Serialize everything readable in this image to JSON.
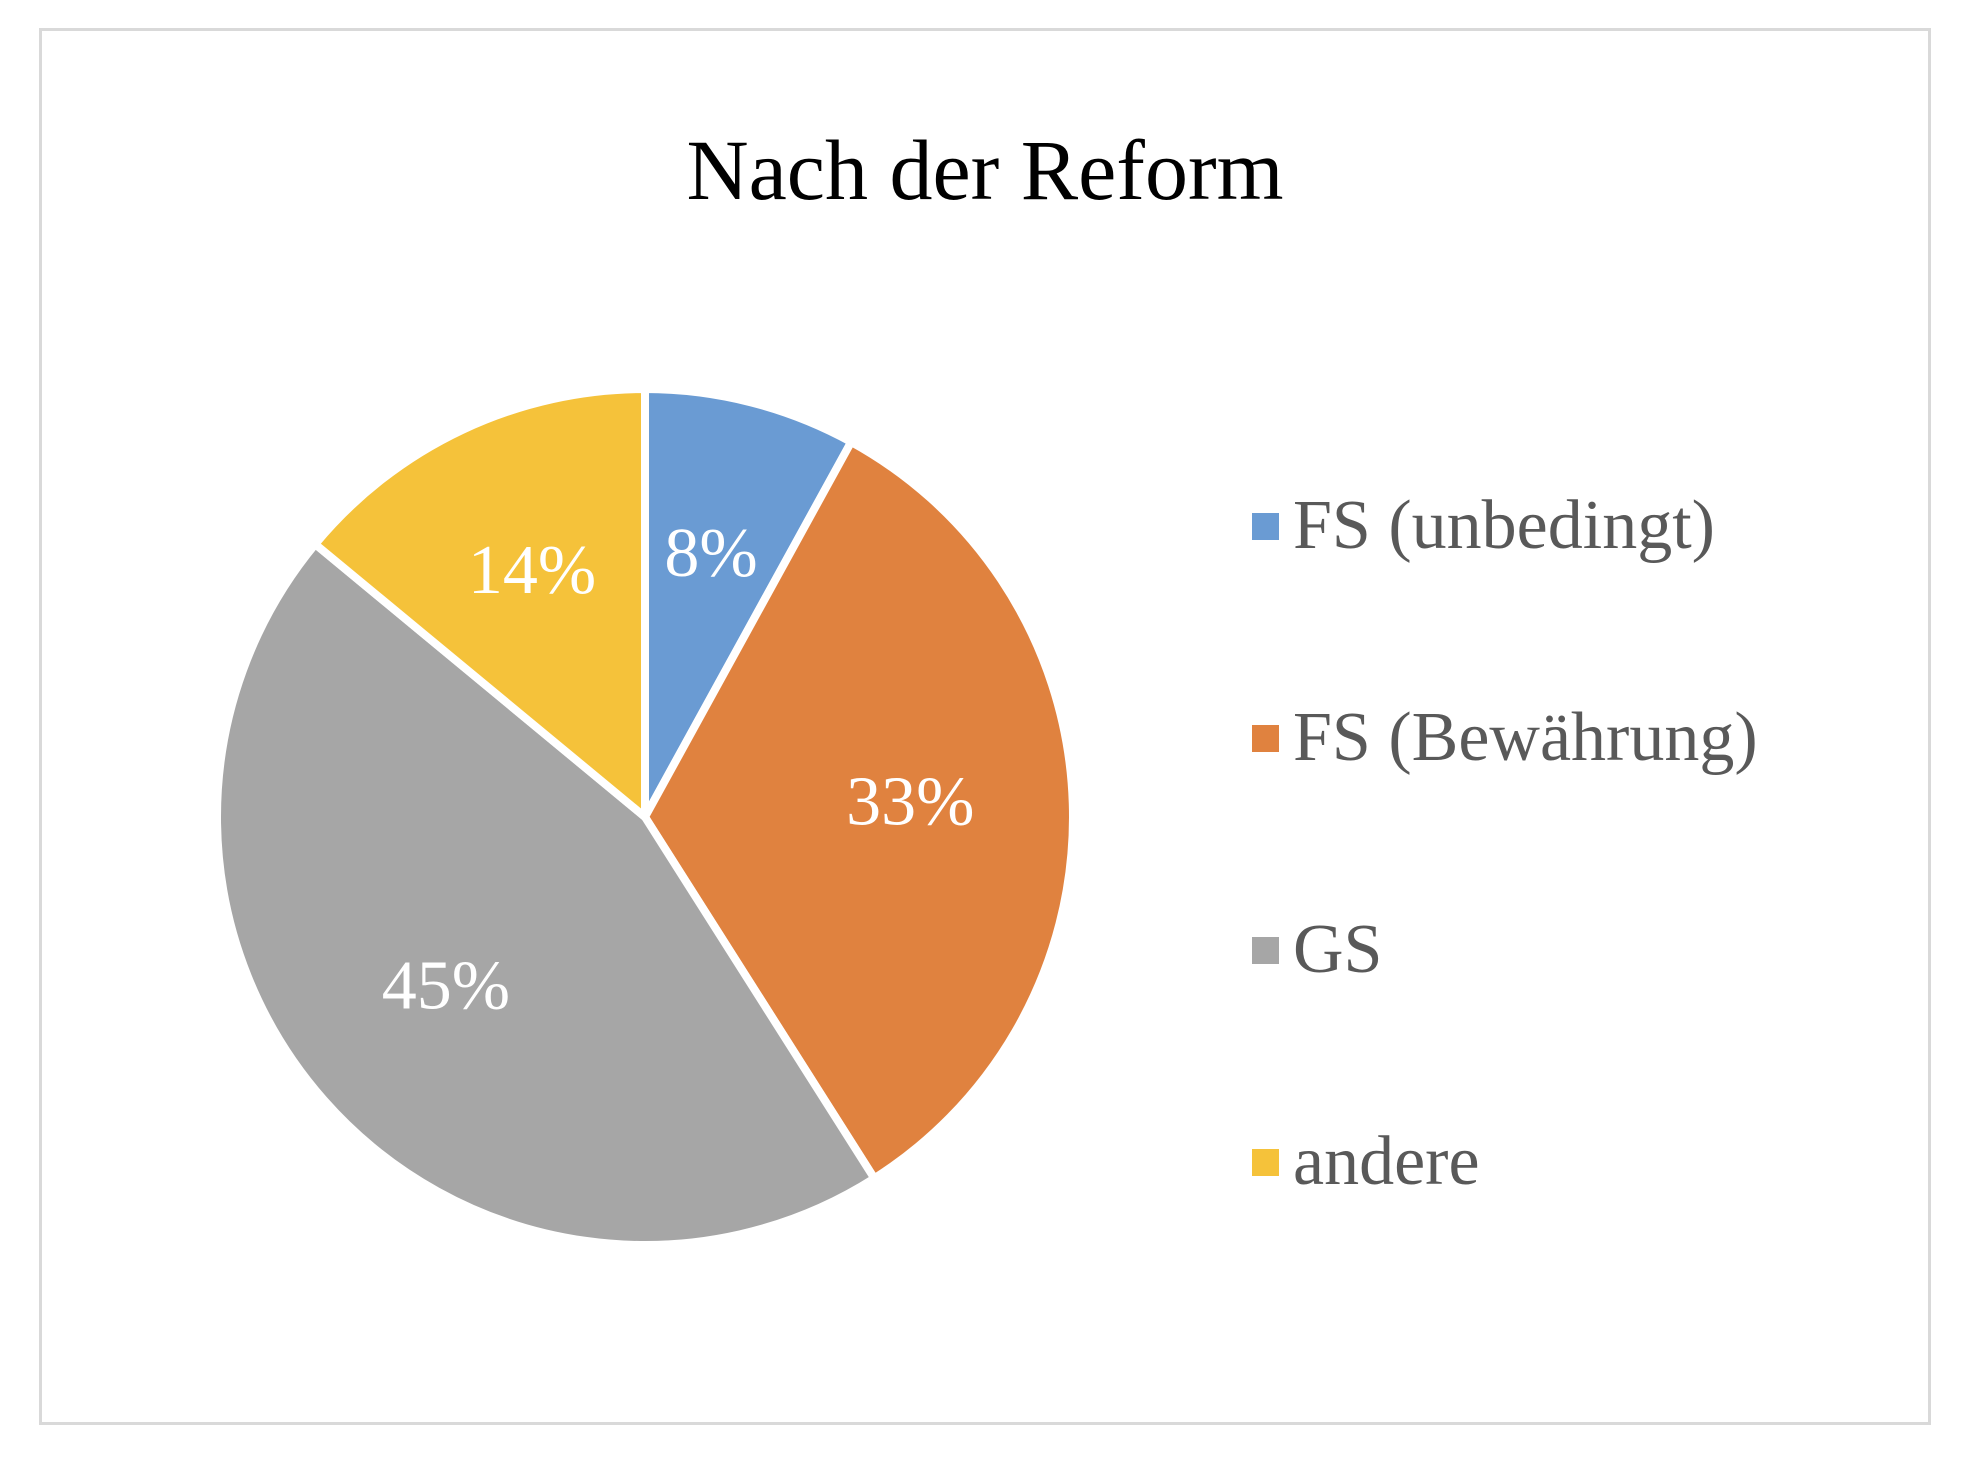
{
  "chart_data": {
    "type": "pie",
    "title": "Nach der Reform",
    "categories": [
      "FS (unbedingt)",
      "FS (Bewährung)",
      "GS",
      "andere"
    ],
    "values": [
      8,
      33,
      45,
      14
    ],
    "labels": [
      "8%",
      "33%",
      "45%",
      "14%"
    ],
    "colors": [
      "#6a9bd3",
      "#e0823f",
      "#a6a6a6",
      "#f5c23a"
    ],
    "legend": "right",
    "start_angle_deg": 0,
    "direction": "clockwise"
  }
}
